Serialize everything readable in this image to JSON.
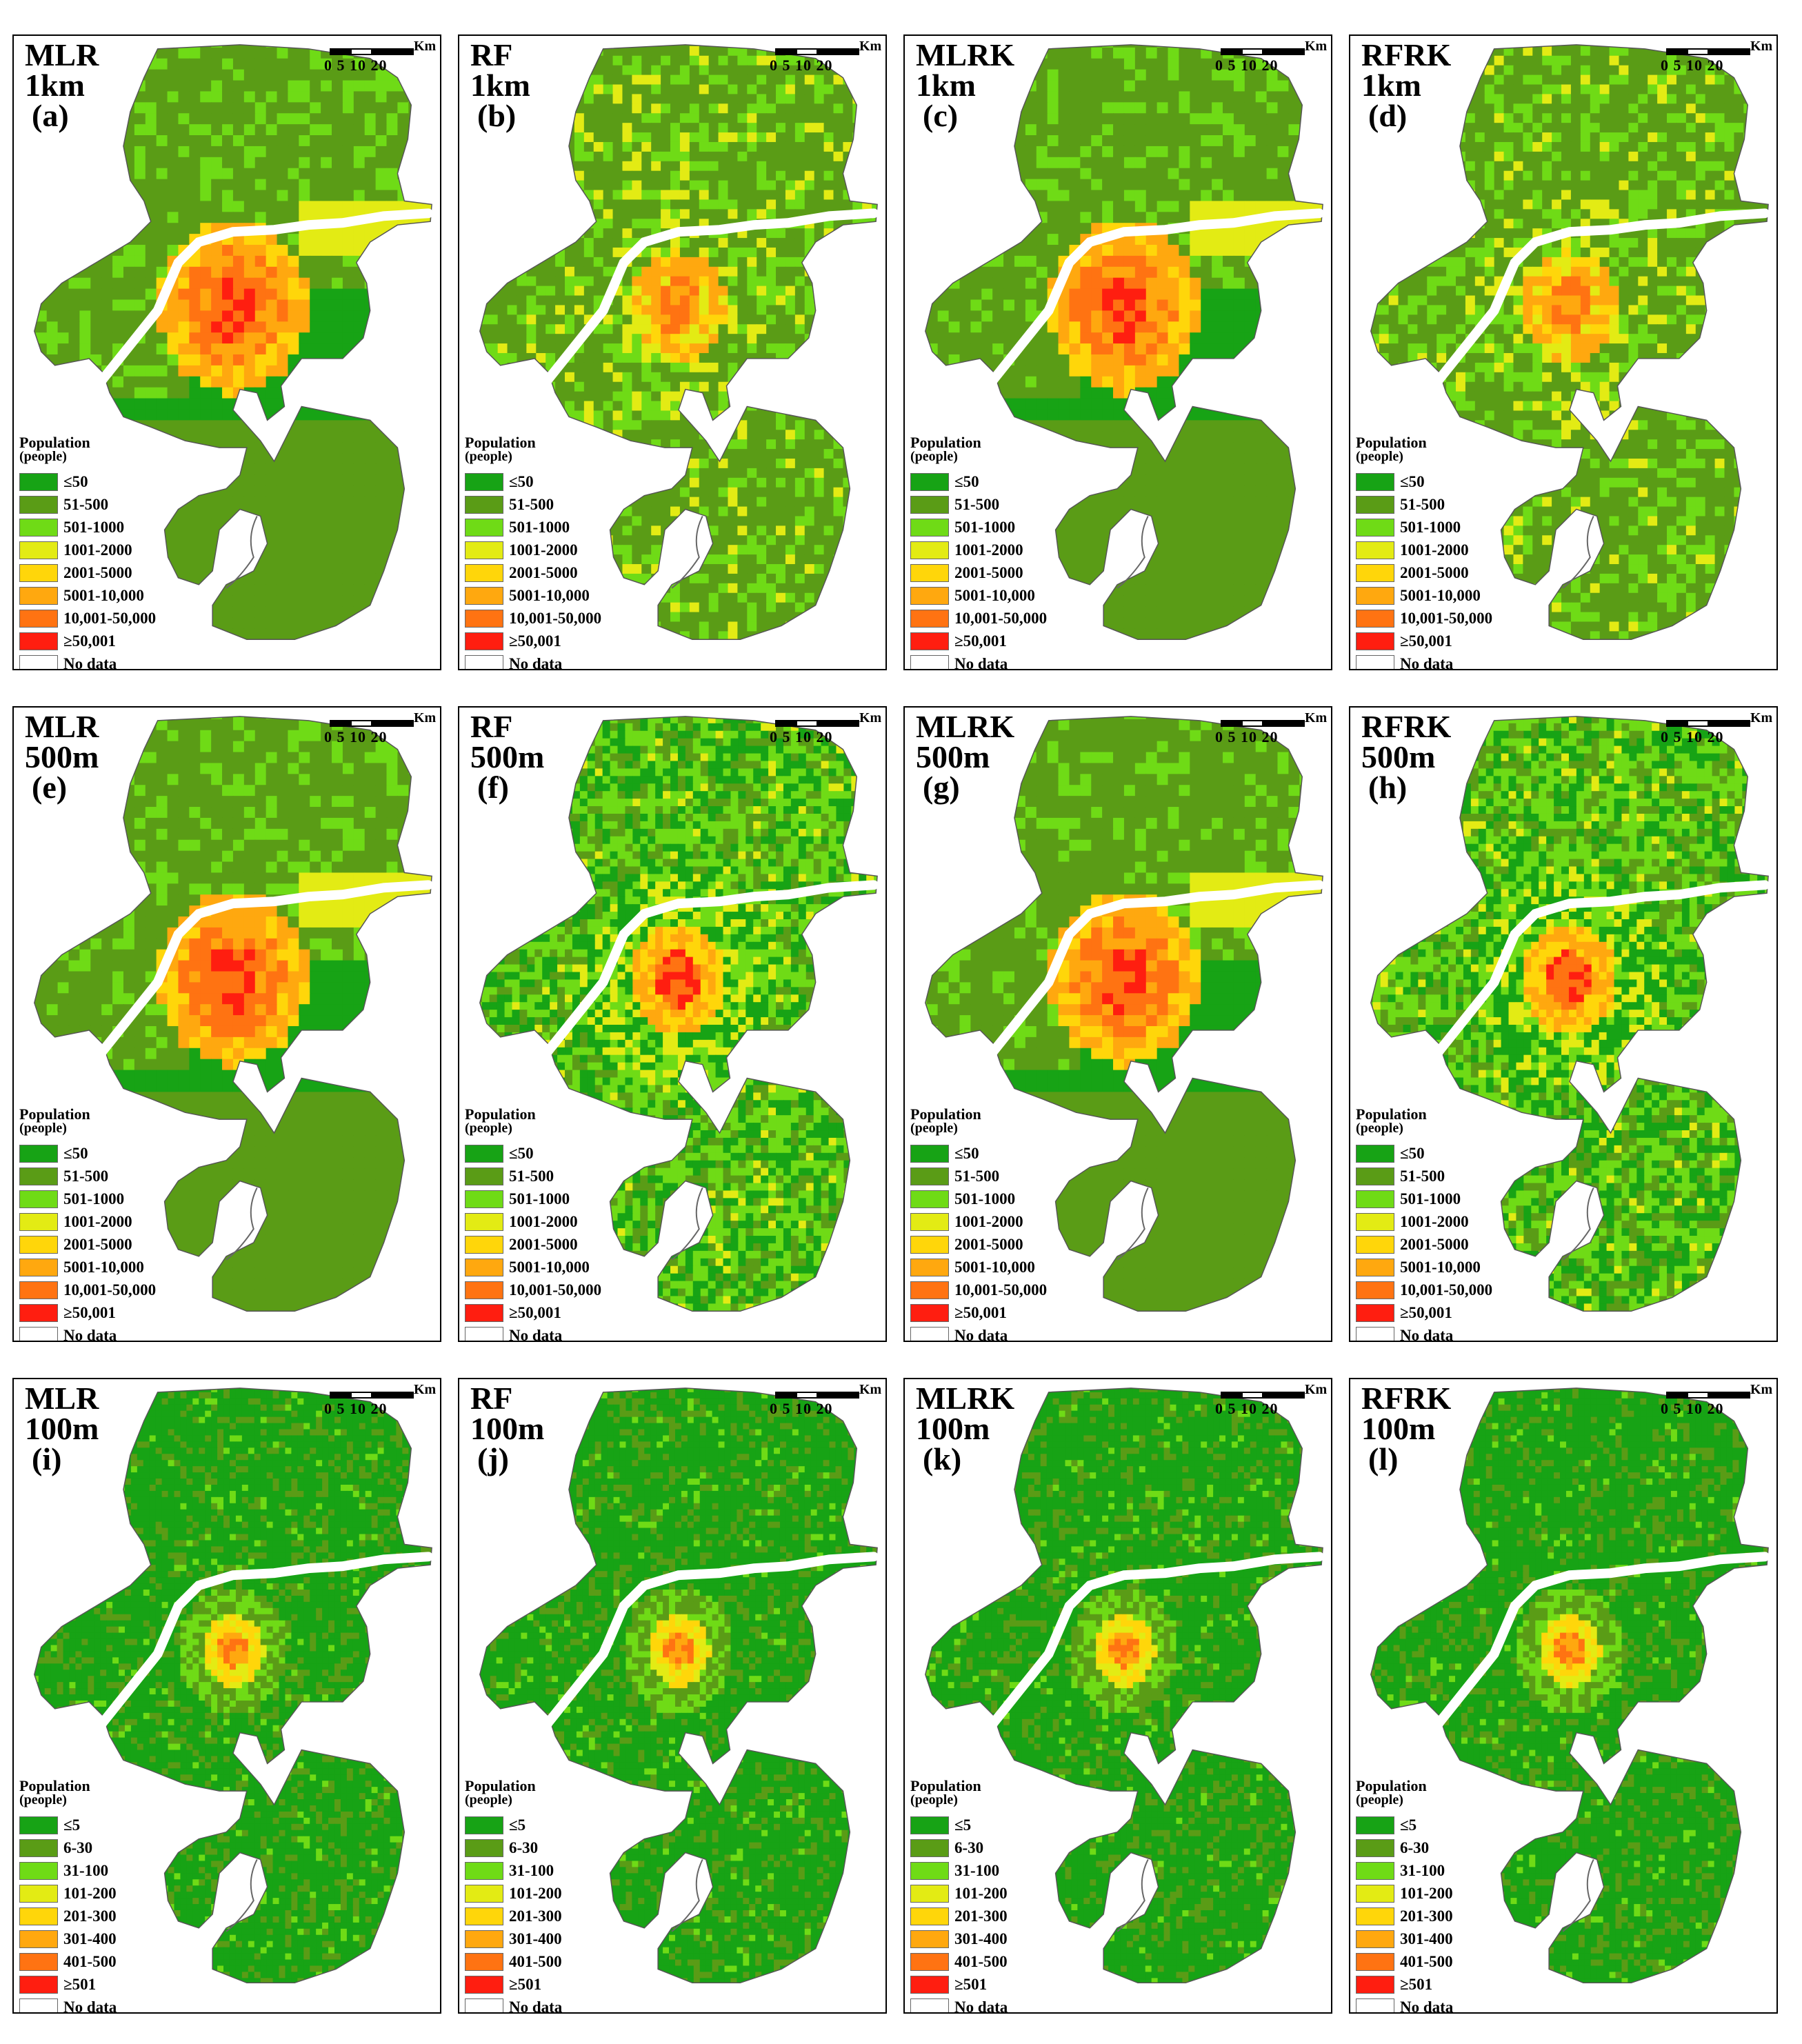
{
  "figure": {
    "panels": [
      {
        "id": "a",
        "method": "MLR",
        "resolution": "1km",
        "letter": "(a)",
        "scheme": "A"
      },
      {
        "id": "b",
        "method": "RF",
        "resolution": "1km",
        "letter": "(b)",
        "scheme": "B"
      },
      {
        "id": "c",
        "method": "MLRK",
        "resolution": "1km",
        "letter": "(c)",
        "scheme": "A"
      },
      {
        "id": "d",
        "method": "RFRK",
        "resolution": "1km",
        "letter": "(d)",
        "scheme": "B"
      },
      {
        "id": "e",
        "method": "MLR",
        "resolution": "500m",
        "letter": "(e)",
        "scheme": "A"
      },
      {
        "id": "f",
        "method": "RF",
        "resolution": "500m",
        "letter": "(f)",
        "scheme": "C"
      },
      {
        "id": "g",
        "method": "MLRK",
        "resolution": "500m",
        "letter": "(g)",
        "scheme": "A"
      },
      {
        "id": "h",
        "method": "RFRK",
        "resolution": "500m",
        "letter": "(h)",
        "scheme": "C"
      },
      {
        "id": "i",
        "method": "MLR",
        "resolution": "100m",
        "letter": "(i)",
        "scheme": "D"
      },
      {
        "id": "j",
        "method": "RF",
        "resolution": "100m",
        "letter": "(j)",
        "scheme": "D"
      },
      {
        "id": "k",
        "method": "MLRK",
        "resolution": "100m",
        "letter": "(k)",
        "scheme": "D"
      },
      {
        "id": "l",
        "method": "RFRK",
        "resolution": "100m",
        "letter": "(l)",
        "scheme": "D"
      }
    ],
    "scale_bar": {
      "unit": "Km",
      "ticks": "0 5 10   20"
    },
    "legend": {
      "title": "Population",
      "subtitle": "(people)",
      "coarse_classes": [
        "≤50",
        "51-500",
        "501-1000",
        "1001-2000",
        "2001-5000",
        "5001-10,000",
        "10,001-50,000",
        "≥50,001",
        "No data"
      ],
      "fine_classes": [
        "≤5",
        "6-30",
        "31-100",
        "101-200",
        "201-300",
        "301-400",
        "401-500",
        "≥501",
        "No data"
      ],
      "colors": [
        "#17a315",
        "#5a9c16",
        "#6fdb16",
        "#e3eb14",
        "#ffd60a",
        "#ffa80f",
        "#ff7312",
        "#ff1e10",
        "#ffffff"
      ]
    }
  }
}
